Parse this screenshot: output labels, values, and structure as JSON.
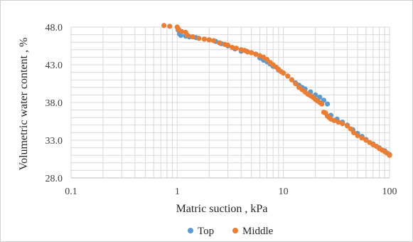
{
  "chart_data": {
    "type": "scatter",
    "title": "",
    "xlabel": "Matric suction , kPa",
    "ylabel": "Volumetric water content , %",
    "xscale": "log",
    "xlim": [
      0.1,
      100
    ],
    "ylim": [
      28.0,
      48.0
    ],
    "xticks": [
      "0.1",
      "1",
      "10",
      "100"
    ],
    "yticks": [
      "28.0",
      "33.0",
      "38.0",
      "43.0",
      "48.0"
    ],
    "grid": true,
    "legend_position": "bottom",
    "colors": {
      "Top": "#5b9bd5",
      "Middle": "#ed7d31",
      "grid": "#d9d9d9"
    },
    "series": [
      {
        "name": "Top",
        "points": [
          [
            1.02,
            47.6
          ],
          [
            1.05,
            47.1
          ],
          [
            1.08,
            46.9
          ],
          [
            1.2,
            46.8
          ],
          [
            1.3,
            46.7
          ],
          [
            1.5,
            46.6
          ],
          [
            1.8,
            46.4
          ],
          [
            2.0,
            46.3
          ],
          [
            2.3,
            46.1
          ],
          [
            2.6,
            45.8
          ],
          [
            3.0,
            45.5
          ],
          [
            3.5,
            45.1
          ],
          [
            4.0,
            44.8
          ],
          [
            4.5,
            44.8
          ],
          [
            5.0,
            44.6
          ],
          [
            5.5,
            44.4
          ],
          [
            6.0,
            43.9
          ],
          [
            6.5,
            43.6
          ],
          [
            7.0,
            43.4
          ],
          [
            7.5,
            43.1
          ],
          [
            8.0,
            42.8
          ],
          [
            9.0,
            42.3
          ],
          [
            10.0,
            41.9
          ],
          [
            11.0,
            41.5
          ],
          [
            12.0,
            41.0
          ],
          [
            13.0,
            40.6
          ],
          [
            14.0,
            40.3
          ],
          [
            15.0,
            40.0
          ],
          [
            16.0,
            39.8
          ],
          [
            18.0,
            39.4
          ],
          [
            20.0,
            39.0
          ],
          [
            22.0,
            38.7
          ],
          [
            24.0,
            38.3
          ],
          [
            26.0,
            37.8
          ],
          [
            28.0,
            36.3
          ],
          [
            32.0,
            35.8
          ],
          [
            36.0,
            35.4
          ],
          [
            40.0,
            35.0
          ],
          [
            45.0,
            34.4
          ],
          [
            50.0,
            33.9
          ],
          [
            55.0,
            33.5
          ],
          [
            60.0,
            33.1
          ],
          [
            70.0,
            32.5
          ],
          [
            80.0,
            32.0
          ],
          [
            90.0,
            31.6
          ],
          [
            100.0,
            31.1
          ]
        ]
      },
      {
        "name": "Middle",
        "points": [
          [
            0.75,
            48.2
          ],
          [
            0.85,
            48.1
          ],
          [
            1.0,
            48.0
          ],
          [
            1.03,
            47.7
          ],
          [
            1.1,
            47.4
          ],
          [
            1.2,
            47.3
          ],
          [
            1.25,
            46.9
          ],
          [
            1.4,
            46.7
          ],
          [
            1.6,
            46.5
          ],
          [
            1.8,
            46.4
          ],
          [
            2.0,
            46.3
          ],
          [
            2.2,
            46.2
          ],
          [
            2.5,
            45.9
          ],
          [
            2.8,
            45.7
          ],
          [
            3.0,
            45.6
          ],
          [
            3.3,
            45.3
          ],
          [
            3.6,
            45.2
          ],
          [
            4.0,
            45.0
          ],
          [
            4.3,
            44.9
          ],
          [
            4.6,
            44.7
          ],
          [
            5.0,
            44.6
          ],
          [
            5.5,
            44.4
          ],
          [
            6.0,
            44.2
          ],
          [
            6.5,
            44.0
          ],
          [
            7.0,
            43.7
          ],
          [
            7.5,
            43.3
          ],
          [
            8.0,
            43.0
          ],
          [
            8.5,
            42.7
          ],
          [
            9.0,
            42.4
          ],
          [
            9.5,
            42.1
          ],
          [
            10.0,
            41.9
          ],
          [
            11.0,
            41.5
          ],
          [
            12.0,
            41.0
          ],
          [
            13.0,
            40.5
          ],
          [
            14.0,
            40.0
          ],
          [
            15.0,
            39.7
          ],
          [
            16.0,
            39.4
          ],
          [
            17.0,
            39.1
          ],
          [
            18.0,
            38.9
          ],
          [
            19.0,
            38.7
          ],
          [
            20.0,
            38.4
          ],
          [
            21.0,
            38.2
          ],
          [
            22.0,
            38.0
          ],
          [
            23.0,
            37.8
          ],
          [
            24.0,
            36.7
          ],
          [
            25.0,
            36.6
          ],
          [
            26.0,
            36.2
          ],
          [
            27.0,
            36.0
          ],
          [
            28.0,
            35.8
          ],
          [
            30.0,
            35.6
          ],
          [
            33.0,
            35.4
          ],
          [
            36.0,
            35.2
          ],
          [
            40.0,
            34.9
          ],
          [
            43.0,
            34.5
          ],
          [
            46.0,
            34.0
          ],
          [
            50.0,
            33.6
          ],
          [
            55.0,
            33.3
          ],
          [
            60.0,
            33.0
          ],
          [
            65.0,
            32.7
          ],
          [
            70.0,
            32.4
          ],
          [
            75.0,
            32.2
          ],
          [
            80.0,
            31.9
          ],
          [
            85.0,
            31.7
          ],
          [
            90.0,
            31.5
          ],
          [
            95.0,
            31.3
          ],
          [
            100.0,
            31.0
          ]
        ]
      }
    ]
  }
}
